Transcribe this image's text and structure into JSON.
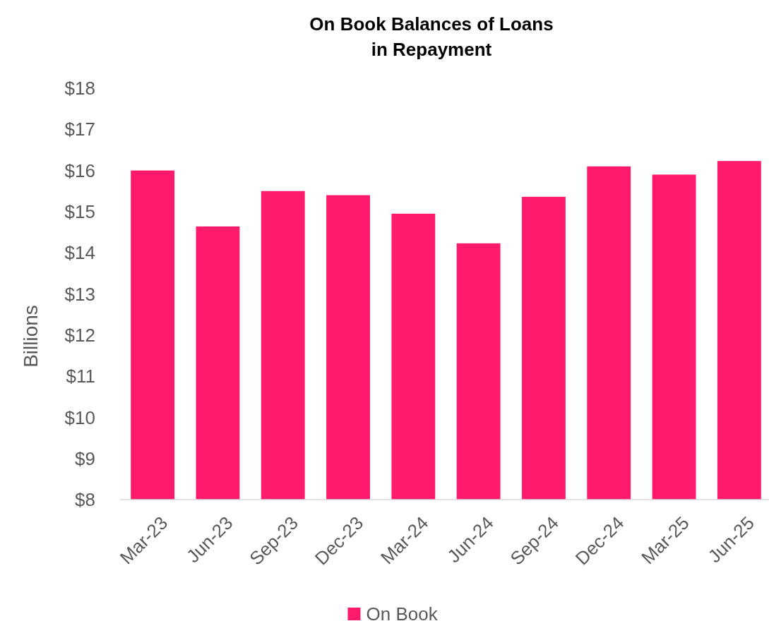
{
  "chart_data": {
    "type": "bar",
    "title": "On Book Balances of Loans\nin Repayment",
    "ylabel": "Billions",
    "categories": [
      "Mar-23",
      "Jun-23",
      "Sep-23",
      "Dec-23",
      "Mar-24",
      "Jun-24",
      "Sep-24",
      "Dec-24",
      "Mar-25",
      "Jun-25"
    ],
    "series": [
      {
        "name": "On Book",
        "color": "#ff1a6e",
        "values": [
          16.0,
          14.64,
          15.5,
          15.4,
          14.95,
          14.23,
          15.36,
          16.1,
          15.9,
          16.23
        ]
      }
    ],
    "ylim": [
      8,
      18
    ],
    "yticks": [
      {
        "value": 8,
        "label": "$8"
      },
      {
        "value": 9,
        "label": "$9"
      },
      {
        "value": 10,
        "label": "$10"
      },
      {
        "value": 11,
        "label": "$11"
      },
      {
        "value": 12,
        "label": "$12"
      },
      {
        "value": 13,
        "label": "$13"
      },
      {
        "value": 14,
        "label": "$14"
      },
      {
        "value": 15,
        "label": "$15"
      },
      {
        "value": 16,
        "label": "$16"
      },
      {
        "value": 17,
        "label": "$17"
      },
      {
        "value": 18,
        "label": "$18"
      }
    ],
    "grid": false,
    "legend": "bottom"
  }
}
